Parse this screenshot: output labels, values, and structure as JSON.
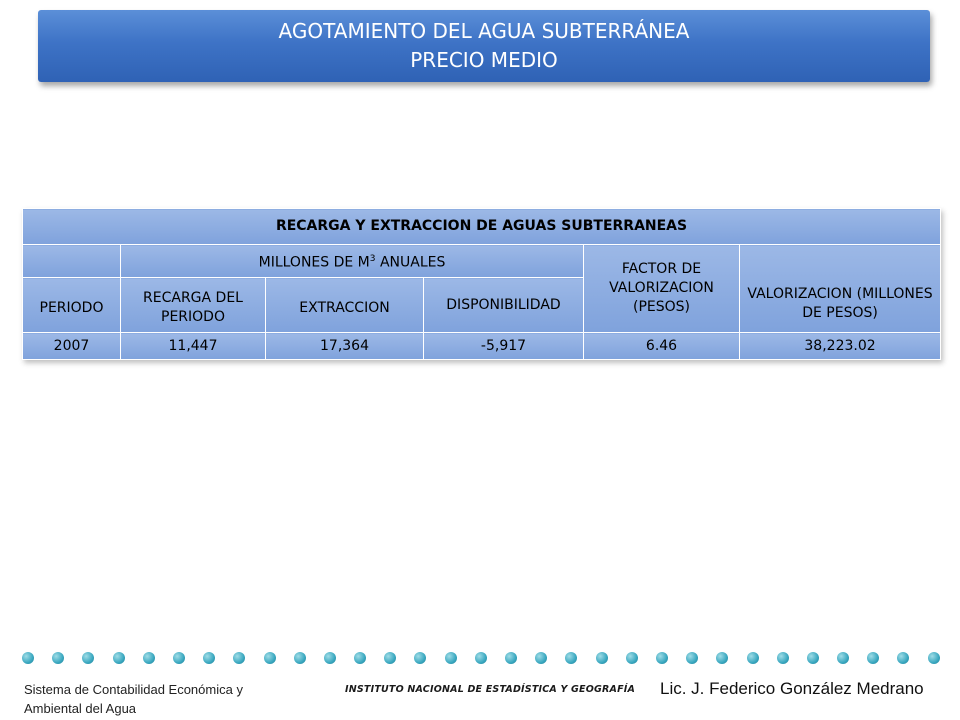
{
  "header": {
    "title_line1": "AGOTAMIENTO DEL AGUA SUBTERRÁNEA",
    "title_line2": "PRECIO MEDIO"
  },
  "table": {
    "title": "RECARGA Y EXTRACCION DE AGUAS SUBTERRANEAS",
    "group_header": "MILLONES DE M",
    "group_header_sup": "3",
    "group_header_suffix": " ANUALES",
    "columns": {
      "periodo": "PERIODO",
      "recarga": "RECARGA DEL PERIODO",
      "extraccion": "EXTRACCION",
      "disponibilidad": "DISPONIBILIDAD",
      "factor": "FACTOR DE VALORIZACION (PESOS)",
      "valorizacion": "VALORIZACION (MILLONES DE PESOS)"
    },
    "rows": [
      {
        "periodo": "2007",
        "recarga": "11,447",
        "extraccion": "17,364",
        "disponibilidad": "-5,917",
        "factor": "6.46",
        "valorizacion": "38,223.02"
      }
    ]
  },
  "footer": {
    "left_line1": "Sistema de Contabilidad Económica y",
    "left_line2": "Ambiental del Agua",
    "institute": "INSTITUTO NACIONAL DE ESTADÍSTICA Y GEOGRAFÍA",
    "author": "Lic. J. Federico González Medrano"
  }
}
